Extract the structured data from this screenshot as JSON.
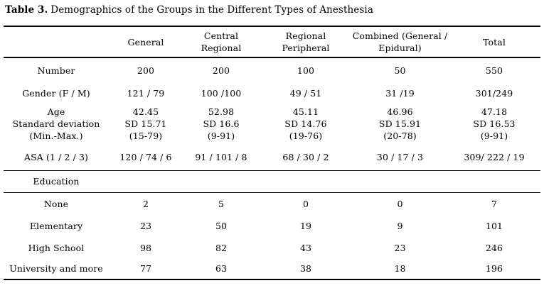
{
  "caption": {
    "label": "Table 3.",
    "text": "Demographics of the Groups in the Different Types of Anesthesia"
  },
  "table": {
    "headers": [
      "",
      "General",
      "Central\nRegional",
      "Regional\nPeripheral",
      "Combined (General /\nEpidural)",
      "Total"
    ],
    "rows": [
      {
        "label": "Number",
        "values": [
          "200",
          "200",
          "100",
          "50",
          "550"
        ]
      },
      {
        "label": "Gender (F / M)",
        "values": [
          "121 / 79",
          "100 /100",
          "49 / 51",
          "31 /19",
          "301/249"
        ]
      },
      {
        "label": "Age\nStandard deviation\n(Min.-Max.)",
        "values": [
          "42.45\nSD 15.71\n(15-79)",
          "52.98\nSD 16.6\n(9-91)",
          "45.11\nSD 14.76\n(19-76)",
          "46.96\nSD 15.91\n(20-78)",
          "47.18\nSD 16.53\n(9-91)"
        ]
      },
      {
        "label": "ASA (1 / 2 / 3)",
        "values": [
          "120 / 74 / 6",
          "91 / 101 / 8",
          "68 / 30 / 2",
          "30 / 17 / 3",
          "309/ 222 / 19"
        ]
      },
      {
        "label": "Education",
        "values": [
          "",
          "",
          "",
          "",
          ""
        ]
      },
      {
        "label": "None",
        "values": [
          "2",
          "5",
          "0",
          "0",
          "7"
        ]
      },
      {
        "label": "Elementary",
        "values": [
          "23",
          "50",
          "19",
          "9",
          "101"
        ]
      },
      {
        "label": "High School",
        "values": [
          "98",
          "82",
          "43",
          "23",
          "246"
        ]
      },
      {
        "label": "University and more",
        "values": [
          "77",
          "63",
          "38",
          "18",
          "196"
        ]
      }
    ]
  },
  "colors": {
    "text": "#000000",
    "rule": "#000000",
    "background": "#ffffff"
  }
}
